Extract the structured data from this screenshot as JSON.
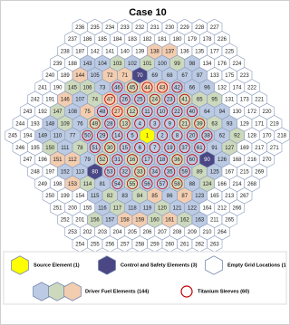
{
  "title": "Case 10",
  "rows": [
    [
      236,
      235,
      234,
      233,
      232,
      231,
      230,
      229,
      228,
      227
    ],
    [
      237,
      186,
      185,
      184,
      183,
      182,
      181,
      180,
      179,
      178,
      226
    ],
    [
      238,
      187,
      142,
      141,
      140,
      139,
      138,
      137,
      136,
      135,
      177,
      225
    ],
    [
      239,
      188,
      143,
      104,
      103,
      102,
      101,
      100,
      99,
      98,
      134,
      176,
      224
    ],
    [
      240,
      189,
      144,
      105,
      72,
      71,
      70,
      69,
      68,
      67,
      97,
      133,
      175,
      223
    ],
    [
      241,
      190,
      145,
      106,
      73,
      46,
      45,
      44,
      43,
      42,
      66,
      96,
      132,
      174,
      222
    ],
    [
      242,
      191,
      146,
      107,
      74,
      47,
      26,
      25,
      24,
      23,
      41,
      65,
      95,
      131,
      173,
      221
    ],
    [
      243,
      192,
      147,
      108,
      75,
      48,
      27,
      12,
      11,
      10,
      22,
      40,
      64,
      94,
      130,
      172,
      220
    ],
    [
      244,
      193,
      148,
      109,
      76,
      49,
      28,
      13,
      4,
      3,
      9,
      21,
      39,
      63,
      93,
      129,
      171,
      219
    ],
    [
      245,
      194,
      149,
      110,
      77,
      50,
      29,
      14,
      5,
      1,
      2,
      8,
      20,
      38,
      62,
      92,
      128,
      170,
      218
    ],
    [
      246,
      195,
      150,
      111,
      78,
      51,
      30,
      15,
      6,
      7,
      19,
      37,
      61,
      91,
      127,
      169,
      217,
      271
    ],
    [
      247,
      196,
      151,
      112,
      79,
      52,
      31,
      16,
      17,
      18,
      36,
      60,
      90,
      126,
      168,
      216,
      270
    ],
    [
      248,
      197,
      152,
      113,
      80,
      53,
      32,
      33,
      34,
      35,
      59,
      89,
      125,
      167,
      215,
      269
    ],
    [
      249,
      198,
      153,
      114,
      81,
      54,
      55,
      56,
      57,
      58,
      88,
      124,
      166,
      214,
      268
    ],
    [
      250,
      199,
      154,
      115,
      82,
      83,
      84,
      85,
      86,
      87,
      123,
      165,
      213,
      267
    ],
    [
      251,
      200,
      155,
      116,
      117,
      118,
      119,
      120,
      121,
      122,
      164,
      212,
      266
    ],
    [
      252,
      201,
      156,
      157,
      158,
      159,
      160,
      161,
      162,
      163,
      211,
      265
    ],
    [
      253,
      202,
      203,
      204,
      205,
      206,
      207,
      208,
      209,
      210,
      264
    ],
    [
      254,
      255,
      256,
      257,
      258,
      259,
      260,
      261,
      262,
      263
    ]
  ],
  "legend": {
    "source": {
      "label": "Source Element (1)",
      "color": "#ffff00",
      "members": [
        1
      ]
    },
    "control": {
      "label": "Control and Safety Elements (3)",
      "color": "#4b4784",
      "members": [
        70,
        80,
        90
      ]
    },
    "empty": {
      "label": "Empty Grid Locations (1",
      "color": "#ffffff"
    },
    "fuel": {
      "label": "Driver Fuel Elements (144)",
      "types": [
        {
          "color": "#bccbe3",
          "members": [
            2,
            3,
            4,
            5,
            6,
            7,
            8,
            9,
            10,
            11,
            14,
            15,
            17,
            18,
            19,
            20,
            22,
            23,
            25,
            26,
            28,
            29,
            31,
            32,
            34,
            35,
            37,
            38,
            40,
            42,
            46,
            48,
            50,
            51,
            53,
            54,
            56,
            57,
            59,
            60,
            61,
            62,
            64,
            66,
            67,
            68,
            69,
            73,
            76,
            77,
            79,
            81,
            83,
            86,
            88,
            91,
            93,
            94,
            96,
            97,
            98,
            100,
            102,
            104,
            105,
            107,
            108,
            110,
            111,
            113,
            115,
            116,
            118,
            119,
            121,
            122,
            123,
            125,
            126,
            143,
            148,
            149,
            152,
            157,
            163
          ]
        },
        {
          "color": "#cdd9bd",
          "members": [
            12,
            13,
            16,
            21,
            24,
            30,
            33,
            36,
            39,
            41,
            45,
            49,
            52,
            55,
            58,
            63,
            65,
            74,
            78,
            82,
            84,
            89,
            92,
            95,
            99,
            101,
            103,
            106,
            109,
            114,
            117,
            120,
            124,
            127,
            145,
            147,
            150,
            156,
            160,
            162
          ]
        },
        {
          "color": "#f3cdb0",
          "members": [
            27,
            43,
            44,
            47,
            71,
            72,
            75,
            85,
            87,
            112,
            137,
            138,
            144,
            146,
            151,
            153,
            158,
            159,
            161
          ]
        }
      ]
    },
    "sleeve": {
      "label": "Titanium Sleeves (60)",
      "color": "#c00000",
      "from": 2,
      "to": 61
    }
  }
}
